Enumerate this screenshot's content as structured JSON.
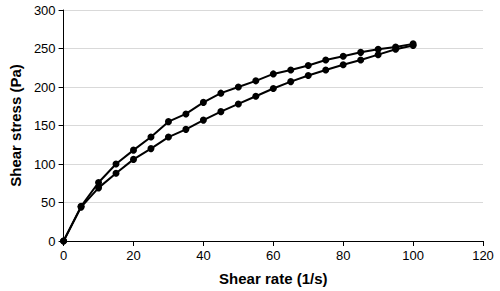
{
  "chart_data": {
    "type": "line",
    "x_label": "Shear rate (1/s)",
    "y_label": "Shear stress (Pa)",
    "x": [
      0,
      5,
      10,
      15,
      20,
      25,
      30,
      35,
      40,
      45,
      50,
      55,
      60,
      65,
      70,
      75,
      80,
      85,
      90,
      95,
      100
    ],
    "series": [
      {
        "color": "#000000",
        "values": [
          0,
          45,
          76,
          100,
          118,
          135,
          155,
          165,
          180,
          192,
          200,
          208,
          217,
          222,
          228,
          235,
          240,
          245,
          249,
          252,
          256
        ]
      },
      {
        "color": "#000000",
        "values": [
          0,
          44,
          69,
          88,
          106,
          120,
          135,
          145,
          157,
          168,
          178,
          188,
          198,
          207,
          215,
          222,
          229,
          235,
          242,
          249,
          254
        ]
      }
    ],
    "xlim": [
      0,
      120
    ],
    "xticks": [
      0,
      20,
      40,
      60,
      80,
      100,
      120
    ],
    "ylim": [
      0,
      300
    ],
    "yticks": [
      0,
      50,
      100,
      150,
      200,
      250,
      300
    ],
    "grid": true,
    "marker": "circle"
  }
}
